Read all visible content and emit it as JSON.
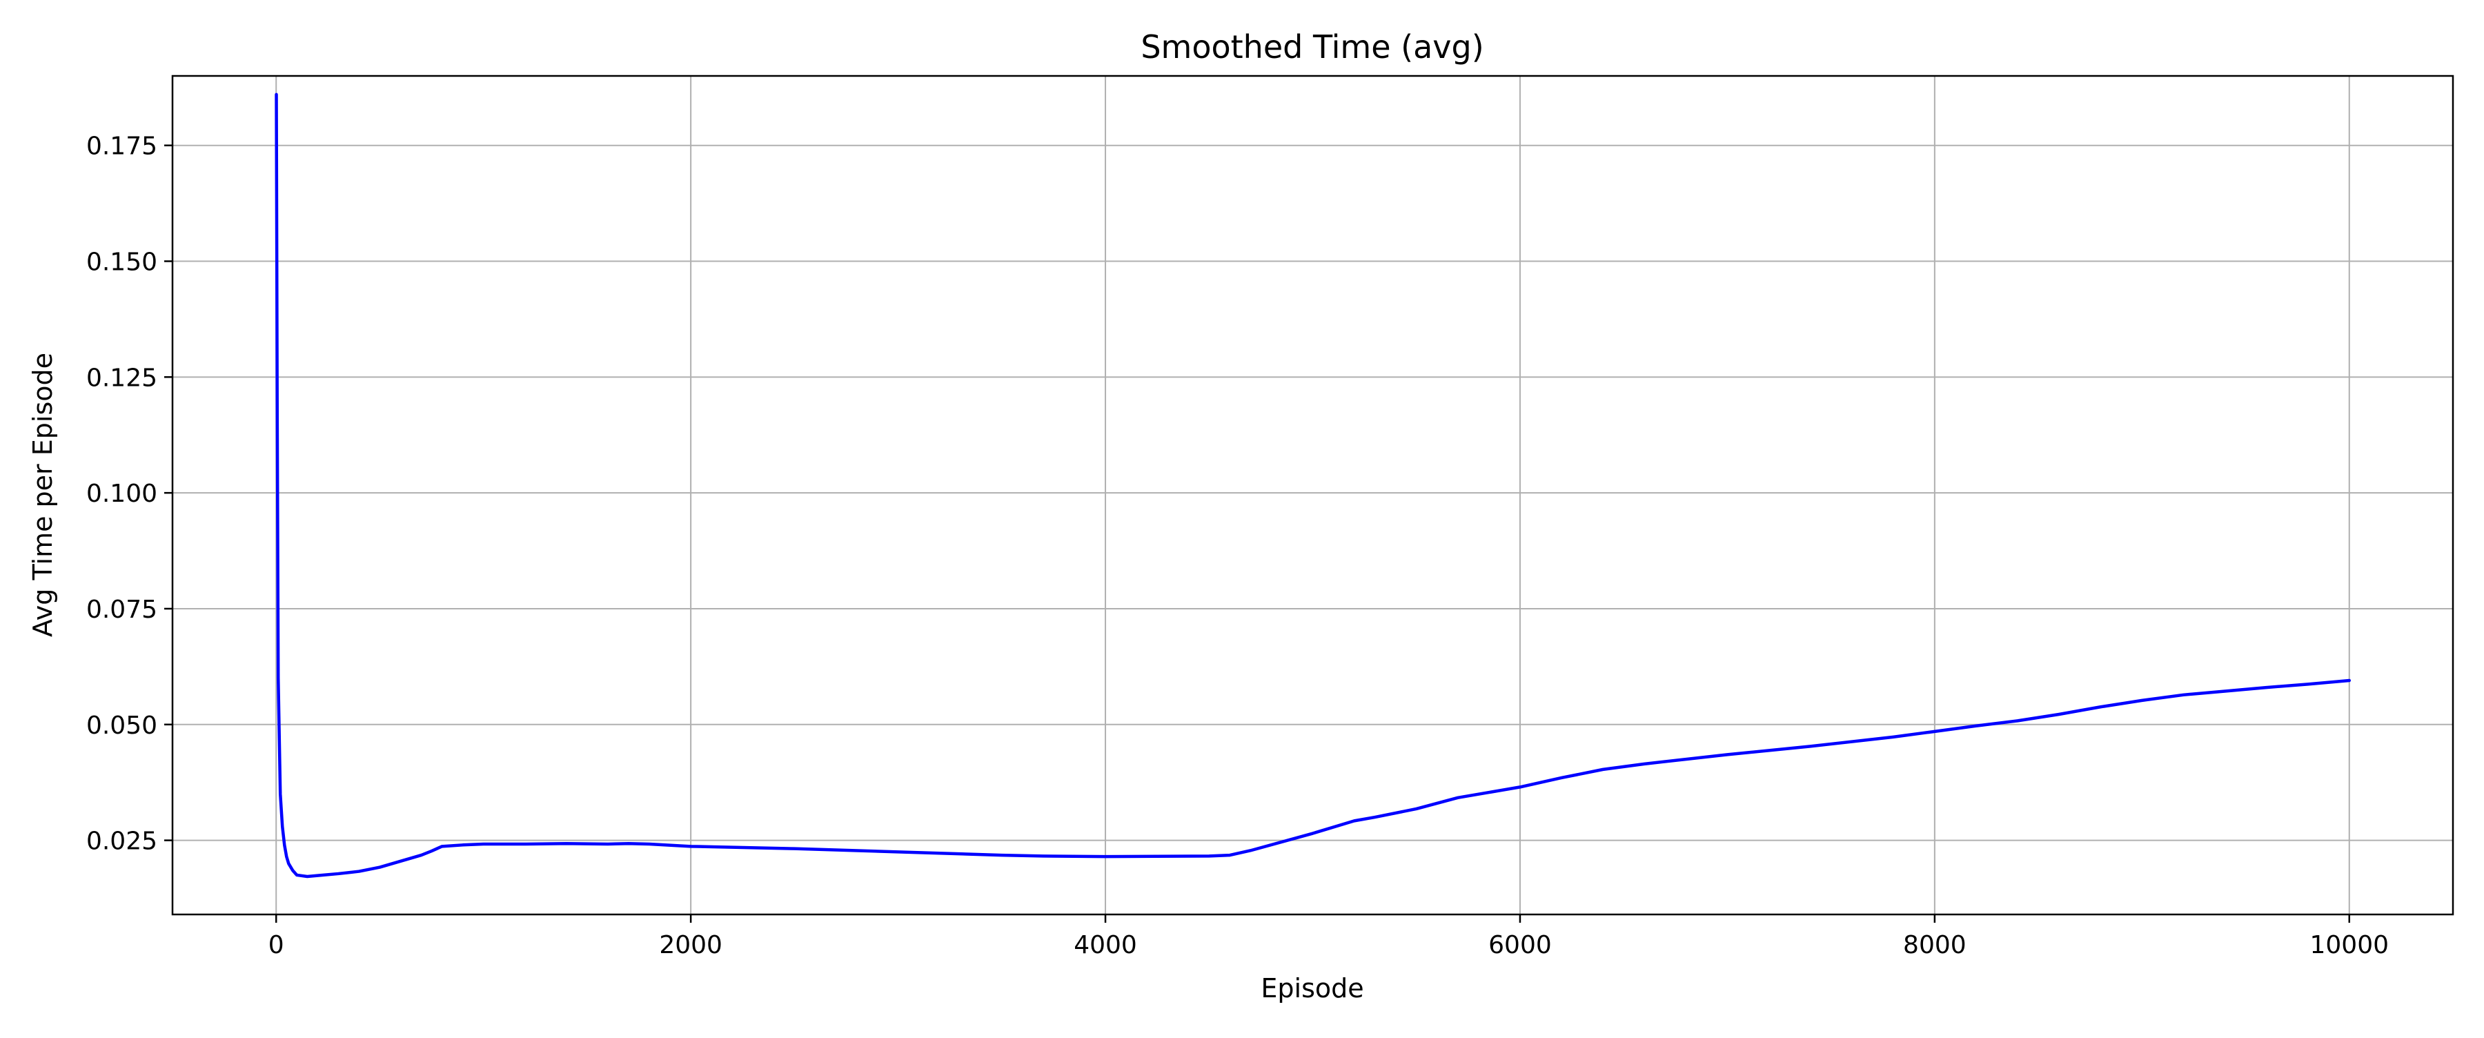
{
  "chart_data": {
    "type": "line",
    "title": "Smoothed Time (avg)",
    "xlabel": "Episode",
    "ylabel": "Avg Time per Episode",
    "xlim": [
      -500,
      10500
    ],
    "ylim": [
      0.009,
      0.19
    ],
    "xticks": [
      0,
      2000,
      4000,
      6000,
      8000,
      10000
    ],
    "xtick_labels": [
      "0",
      "2000",
      "4000",
      "6000",
      "8000",
      "10000"
    ],
    "yticks": [
      0.025,
      0.05,
      0.075,
      0.1,
      0.125,
      0.15,
      0.175
    ],
    "ytick_labels": [
      "0.025",
      "0.050",
      "0.075",
      "0.100",
      "0.125",
      "0.150",
      "0.175"
    ],
    "grid": true,
    "series": [
      {
        "color": "#0000ff",
        "x": [
          1,
          5,
          10,
          20,
          30,
          40,
          50,
          60,
          80,
          100,
          150,
          200,
          300,
          400,
          500,
          600,
          700,
          750,
          800,
          900,
          1000,
          1200,
          1400,
          1600,
          1700,
          1800,
          2000,
          2500,
          3000,
          3500,
          3700,
          4000,
          4500,
          4600,
          4700,
          5000,
          5200,
          5300,
          5500,
          5700,
          6000,
          6200,
          6400,
          6600,
          7000,
          7400,
          7800,
          8000,
          8200,
          8400,
          8600,
          8800,
          9000,
          9200,
          9400,
          9600,
          9800,
          10000
        ],
        "values": [
          0.186,
          0.12,
          0.06,
          0.035,
          0.028,
          0.024,
          0.0215,
          0.02,
          0.0185,
          0.0175,
          0.0172,
          0.0174,
          0.0178,
          0.0183,
          0.0192,
          0.0205,
          0.0218,
          0.0227,
          0.0237,
          0.024,
          0.0242,
          0.0242,
          0.0243,
          0.0242,
          0.0243,
          0.0242,
          0.0237,
          0.0232,
          0.0225,
          0.0218,
          0.0216,
          0.0215,
          0.0216,
          0.0218,
          0.0228,
          0.0265,
          0.0292,
          0.03,
          0.0318,
          0.0342,
          0.0365,
          0.0385,
          0.0403,
          0.0415,
          0.0435,
          0.0453,
          0.0473,
          0.0485,
          0.0497,
          0.0508,
          0.0522,
          0.0538,
          0.0552,
          0.0564,
          0.0572,
          0.058,
          0.0587,
          0.0595
        ]
      }
    ]
  }
}
